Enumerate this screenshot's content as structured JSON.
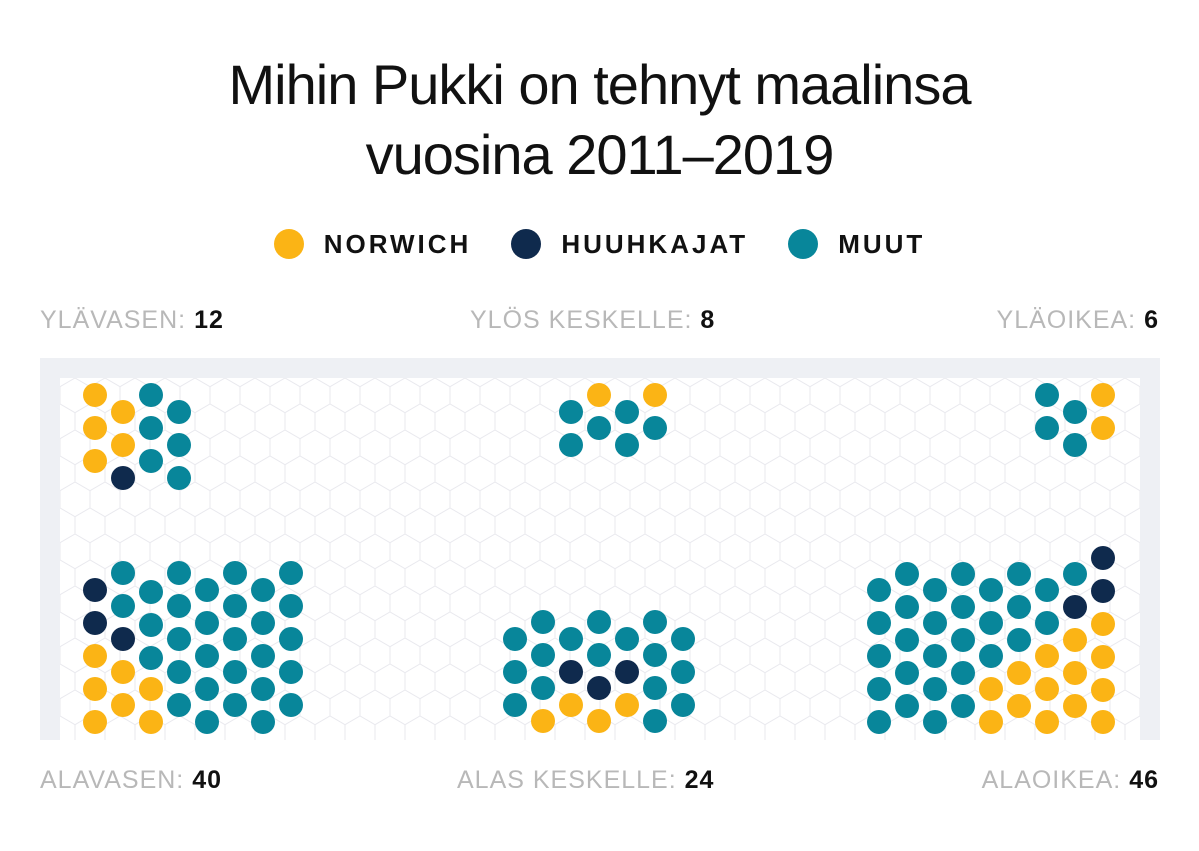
{
  "title_lines": [
    "Mihin Pukki on tehnyt maalinsa",
    "vuosina 2011–2019"
  ],
  "legend": [
    {
      "label": "NORWICH",
      "color": "#fbb415"
    },
    {
      "label": "HUUHKAJAT",
      "color": "#0f2a4d"
    },
    {
      "label": "MUUT",
      "color": "#08869a"
    }
  ],
  "zones": [
    {
      "label": "YLÄVASEN:",
      "count": "12"
    },
    {
      "label": "YLÖS KESKELLE:",
      "count": "8"
    },
    {
      "label": "YLÄOIKEA:",
      "count": "6"
    },
    {
      "label": "ALAVASEN:",
      "count": "40"
    },
    {
      "label": "ALAS KESKELLE:",
      "count": "24"
    },
    {
      "label": "ALAOIKEA:",
      "count": "46"
    }
  ],
  "chart_data": {
    "type": "dot-grid",
    "title": "Mihin Pukki on tehnyt maalinsa vuosina 2011–2019",
    "series": [
      {
        "name": "NORWICH",
        "color": "#fbb415"
      },
      {
        "name": "HUUHKAJAT",
        "color": "#0f2a4d"
      },
      {
        "name": "MUUT",
        "color": "#08869a"
      }
    ],
    "categories": [
      "YLÄVASEN",
      "YLÖS KESKELLE",
      "YLÄOIKEA",
      "ALAVASEN",
      "ALAS KESKELLE",
      "ALAOIKEA"
    ],
    "totals": [
      12,
      8,
      6,
      40,
      24,
      46
    ],
    "breakdown": {
      "YLÄVASEN": {
        "NORWICH": 5,
        "HUUHKAJAT": 1,
        "MUUT": 6
      },
      "YLÖS KESKELLE": {
        "NORWICH": 2,
        "HUUHKAJAT": 0,
        "MUUT": 6
      },
      "YLÄOIKEA": {
        "NORWICH": 2,
        "HUUHKAJAT": 0,
        "MUUT": 4
      },
      "ALAVASEN": {
        "NORWICH": 7,
        "HUUHKAJAT": 3,
        "MUUT": 30
      },
      "ALAS KESKELLE": {
        "NORWICH": 4,
        "HUUHKAJAT": 3,
        "MUUT": 17
      },
      "ALAOIKEA": {
        "NORWICH": 14,
        "HUUHKAJAT": 3,
        "MUUT": 29
      }
    }
  }
}
